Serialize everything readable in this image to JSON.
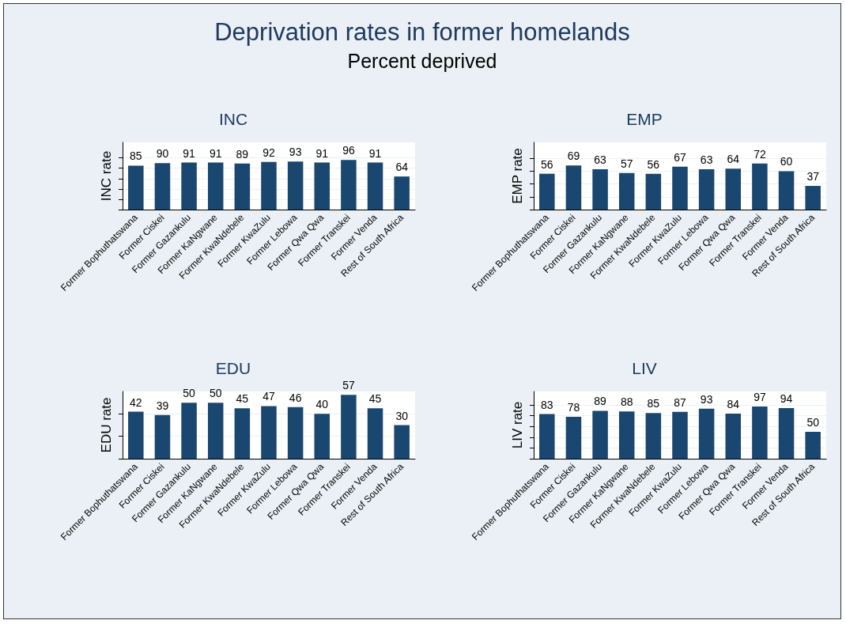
{
  "chart_data": [
    {
      "type": "other",
      "title": "Deprivation rates in former homelands",
      "subtitle": "Percent deprived"
    },
    {
      "type": "bar",
      "title": "INC",
      "ylabel": "INC rate",
      "categories": [
        "Former Bophuthatswana",
        "Former Ciskei",
        "Former Gazankulu",
        "Former KaNgwane",
        "Former KwaNdebele",
        "Former KwaZulu",
        "Former Lebowa",
        "Former Qwa Qwa",
        "Former Transkei",
        "Former Venda",
        "Rest of South Africa"
      ],
      "values": [
        85,
        90,
        91,
        91,
        89,
        92,
        93,
        91,
        96,
        91,
        64
      ],
      "color": "#1a476f",
      "data_labels": true,
      "ylim": [
        0,
        130
      ],
      "yticks": [
        {
          "value": 0,
          "label": null
        },
        {
          "value": 20,
          "label": null
        },
        {
          "value": 40,
          "label": null
        },
        {
          "value": 60,
          "label": null
        },
        {
          "value": 80,
          "label": null
        },
        {
          "value": 100,
          "label": null
        }
      ],
      "tick_labels": "x",
      "grid": "y"
    },
    {
      "type": "bar",
      "title": "EMP",
      "ylabel": "EMP rate",
      "categories": [
        "Former Bophuthatswana",
        "Former Ciskei",
        "Former Gazankulu",
        "Former KaNgwane",
        "Former KwaNdebele",
        "Former KwaZulu",
        "Former Lebowa",
        "Former Qwa Qwa",
        "Former Transkei",
        "Former Venda",
        "Rest of South Africa"
      ],
      "values": [
        56,
        69,
        63,
        57,
        56,
        67,
        63,
        64,
        72,
        60,
        37
      ],
      "color": "#1a476f",
      "data_labels": true,
      "ylim": [
        0,
        105
      ],
      "yticks": [
        {
          "value": 0,
          "label": null
        },
        {
          "value": 20,
          "label": null
        },
        {
          "value": 40,
          "label": null
        },
        {
          "value": 60,
          "label": null
        },
        {
          "value": 80,
          "label": null
        }
      ],
      "tick_labels": "x",
      "grid": "y"
    },
    {
      "type": "bar",
      "title": "EDU",
      "ylabel": "EDU rate",
      "categories": [
        "Former Bophuthatswana",
        "Former Ciskei",
        "Former Gazankulu",
        "Former KaNgwane",
        "Former KwaNdebele",
        "Former KwaZulu",
        "Former Lebowa",
        "Former Qwa Qwa",
        "Former Transkei",
        "Former Venda",
        "Rest of South Africa"
      ],
      "values": [
        42,
        39,
        50,
        50,
        45,
        47,
        46,
        40,
        57,
        45,
        30
      ],
      "color": "#1a476f",
      "data_labels": true,
      "ylim": [
        0,
        60
      ],
      "yticks": [
        {
          "value": 0,
          "label": null
        },
        {
          "value": 20,
          "label": null
        },
        {
          "value": 40,
          "label": null
        }
      ],
      "tick_labels": "x",
      "grid": "y"
    },
    {
      "type": "bar",
      "title": "LIV",
      "ylabel": "LIV rate",
      "categories": [
        "Former Bophuthatswana",
        "Former Ciskei",
        "Former Gazankulu",
        "Former KaNgwane",
        "Former KwaNdebele",
        "Former KwaZulu",
        "Former Lebowa",
        "Former Qwa Qwa",
        "Former Transkei",
        "Former Venda",
        "Rest of South Africa"
      ],
      "values": [
        83,
        78,
        89,
        88,
        85,
        87,
        93,
        84,
        97,
        94,
        50
      ],
      "color": "#1a476f",
      "data_labels": true,
      "ylim": [
        0,
        125
      ],
      "yticks": [
        {
          "value": 0,
          "label": null
        },
        {
          "value": 20,
          "label": null
        },
        {
          "value": 40,
          "label": null
        },
        {
          "value": 60,
          "label": null
        },
        {
          "value": 80,
          "label": null
        },
        {
          "value": 100,
          "label": null
        }
      ],
      "tick_labels": "x",
      "grid": "y"
    }
  ]
}
